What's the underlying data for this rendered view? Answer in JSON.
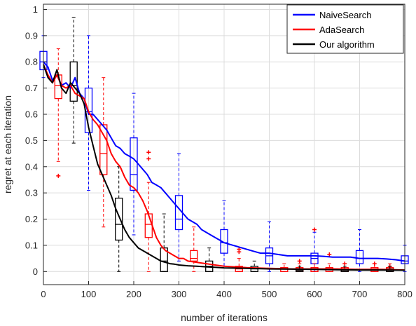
{
  "chart_data": {
    "type": "line",
    "xlabel": "number of iterations",
    "ylabel": "regret at each iteration",
    "xlim": [
      0,
      800
    ],
    "ylim": [
      -0.05,
      1.02
    ],
    "xticks": [
      "0",
      "100",
      "200",
      "300",
      "400",
      "500",
      "600",
      "700",
      "800"
    ],
    "yticks": [
      "0",
      "0.1",
      "0.2",
      "0.3",
      "0.4",
      "0.5",
      "0.6",
      "0.7",
      "0.8",
      "0.9",
      "1"
    ],
    "grid": true,
    "legend_position": "top-right",
    "series": [
      {
        "name": "NaiveSearch",
        "color": "#0000ff",
        "x": [
          0,
          10,
          20,
          30,
          40,
          50,
          60,
          70,
          80,
          90,
          100,
          110,
          120,
          130,
          140,
          150,
          160,
          170,
          180,
          190,
          200,
          210,
          220,
          230,
          240,
          250,
          260,
          270,
          280,
          290,
          300,
          310,
          320,
          330,
          340,
          350,
          360,
          370,
          380,
          390,
          400,
          420,
          440,
          460,
          480,
          500,
          520,
          540,
          560,
          580,
          600,
          620,
          640,
          660,
          680,
          700,
          720,
          740,
          760,
          780,
          800
        ],
        "y": [
          0.8,
          0.78,
          0.73,
          0.75,
          0.71,
          0.72,
          0.7,
          0.74,
          0.68,
          0.66,
          0.6,
          0.6,
          0.58,
          0.56,
          0.54,
          0.51,
          0.48,
          0.47,
          0.45,
          0.44,
          0.43,
          0.41,
          0.39,
          0.37,
          0.34,
          0.33,
          0.32,
          0.3,
          0.28,
          0.26,
          0.24,
          0.22,
          0.2,
          0.19,
          0.18,
          0.16,
          0.15,
          0.14,
          0.13,
          0.12,
          0.11,
          0.1,
          0.09,
          0.08,
          0.07,
          0.07,
          0.065,
          0.06,
          0.06,
          0.06,
          0.06,
          0.058,
          0.055,
          0.055,
          0.055,
          0.05,
          0.05,
          0.05,
          0.048,
          0.045,
          0.04
        ]
      },
      {
        "name": "AdaSearch",
        "color": "#ff0000",
        "x": [
          0,
          10,
          20,
          30,
          40,
          50,
          60,
          70,
          80,
          90,
          100,
          110,
          120,
          130,
          140,
          150,
          160,
          170,
          180,
          190,
          200,
          210,
          220,
          230,
          240,
          250,
          260,
          270,
          280,
          290,
          300,
          310,
          320,
          340,
          360,
          380,
          400,
          450,
          500,
          550,
          600,
          650,
          700,
          750,
          800
        ],
        "y": [
          0.79,
          0.75,
          0.72,
          0.75,
          0.71,
          0.7,
          0.71,
          0.68,
          0.67,
          0.66,
          0.61,
          0.58,
          0.56,
          0.53,
          0.5,
          0.45,
          0.42,
          0.4,
          0.36,
          0.33,
          0.32,
          0.3,
          0.27,
          0.23,
          0.18,
          0.13,
          0.1,
          0.08,
          0.07,
          0.06,
          0.05,
          0.05,
          0.04,
          0.035,
          0.03,
          0.025,
          0.02,
          0.015,
          0.012,
          0.01,
          0.01,
          0.01,
          0.008,
          0.008,
          0.006
        ]
      },
      {
        "name": "Our algorithm",
        "color": "#000000",
        "x": [
          0,
          10,
          20,
          30,
          40,
          50,
          60,
          70,
          80,
          90,
          100,
          110,
          120,
          130,
          140,
          150,
          160,
          170,
          180,
          190,
          200,
          210,
          220,
          230,
          240,
          250,
          260,
          270,
          280,
          290,
          300,
          320,
          340,
          360,
          380,
          400,
          450,
          500,
          550,
          600,
          650,
          700,
          750,
          800
        ],
        "y": [
          0.79,
          0.74,
          0.72,
          0.77,
          0.7,
          0.68,
          0.72,
          0.7,
          0.68,
          0.64,
          0.55,
          0.48,
          0.41,
          0.37,
          0.33,
          0.29,
          0.24,
          0.2,
          0.16,
          0.13,
          0.11,
          0.09,
          0.08,
          0.07,
          0.06,
          0.05,
          0.04,
          0.035,
          0.03,
          0.028,
          0.025,
          0.022,
          0.02,
          0.018,
          0.016,
          0.014,
          0.012,
          0.01,
          0.009,
          0.008,
          0.007,
          0.006,
          0.006,
          0.005
        ]
      }
    ],
    "boxplots": [
      {
        "series": "NaiveSearch",
        "x": 0,
        "q1": 0.77,
        "median": 0.8,
        "q3": 0.84,
        "whisker_low": 0.74,
        "whisker_high": 0.9,
        "outliers": []
      },
      {
        "series": "NaiveSearch",
        "x": 100,
        "q1": 0.53,
        "median": 0.61,
        "q3": 0.7,
        "whisker_low": 0.31,
        "whisker_high": 0.9,
        "outliers": []
      },
      {
        "series": "NaiveSearch",
        "x": 200,
        "q1": 0.31,
        "median": 0.37,
        "q3": 0.51,
        "whisker_low": 0.14,
        "whisker_high": 0.68,
        "outliers": []
      },
      {
        "series": "NaiveSearch",
        "x": 300,
        "q1": 0.16,
        "median": 0.2,
        "q3": 0.29,
        "whisker_low": 0.04,
        "whisker_high": 0.45,
        "outliers": []
      },
      {
        "series": "NaiveSearch",
        "x": 400,
        "q1": 0.07,
        "median": 0.11,
        "q3": 0.16,
        "whisker_low": 0.02,
        "whisker_high": 0.27,
        "outliers": []
      },
      {
        "series": "NaiveSearch",
        "x": 500,
        "q1": 0.03,
        "median": 0.06,
        "q3": 0.09,
        "whisker_low": 0.0,
        "whisker_high": 0.19,
        "outliers": []
      },
      {
        "series": "NaiveSearch",
        "x": 600,
        "q1": 0.03,
        "median": 0.05,
        "q3": 0.07,
        "whisker_low": 0.0,
        "whisker_high": 0.15,
        "outliers": []
      },
      {
        "series": "NaiveSearch",
        "x": 700,
        "q1": 0.03,
        "median": 0.05,
        "q3": 0.08,
        "whisker_low": 0.0,
        "whisker_high": 0.16,
        "outliers": []
      },
      {
        "series": "NaiveSearch",
        "x": 800,
        "q1": 0.03,
        "median": 0.04,
        "q3": 0.06,
        "whisker_low": 0.0,
        "whisker_high": 0.1,
        "outliers": []
      },
      {
        "series": "AdaSearch",
        "x": 33,
        "q1": 0.66,
        "median": 0.71,
        "q3": 0.75,
        "whisker_low": 0.42,
        "whisker_high": 0.85,
        "outliers": [
          0.365
        ]
      },
      {
        "series": "AdaSearch",
        "x": 133,
        "q1": 0.37,
        "median": 0.45,
        "q3": 0.56,
        "whisker_low": 0.17,
        "whisker_high": 0.74,
        "outliers": []
      },
      {
        "series": "AdaSearch",
        "x": 233,
        "q1": 0.13,
        "median": 0.18,
        "q3": 0.22,
        "whisker_low": 0.0,
        "whisker_high": 0.34,
        "outliers": [
          0.43,
          0.455
        ]
      },
      {
        "series": "AdaSearch",
        "x": 333,
        "q1": 0.04,
        "median": 0.05,
        "q3": 0.08,
        "whisker_low": 0.0,
        "whisker_high": 0.17,
        "outliers": []
      },
      {
        "series": "AdaSearch",
        "x": 433,
        "q1": 0.0,
        "median": 0.01,
        "q3": 0.02,
        "whisker_low": 0.0,
        "whisker_high": 0.05,
        "outliers": [
          0.085,
          0.075
        ]
      },
      {
        "series": "AdaSearch",
        "x": 533,
        "q1": 0.0,
        "median": 0.01,
        "q3": 0.015,
        "whisker_low": 0.0,
        "whisker_high": 0.03,
        "outliers": []
      },
      {
        "series": "AdaSearch",
        "x": 567,
        "q1": 0.0,
        "median": 0.01,
        "q3": 0.015,
        "whisker_low": 0.0,
        "whisker_high": 0.03,
        "outliers": [
          0.04
        ]
      },
      {
        "series": "AdaSearch",
        "x": 600,
        "q1": 0.0,
        "median": 0.01,
        "q3": 0.015,
        "whisker_low": 0.0,
        "whisker_high": 0.03,
        "outliers": [
          0.16
        ]
      },
      {
        "series": "AdaSearch",
        "x": 633,
        "q1": 0.0,
        "median": 0.01,
        "q3": 0.015,
        "whisker_low": 0.0,
        "whisker_high": 0.03,
        "outliers": [
          0.065
        ]
      },
      {
        "series": "AdaSearch",
        "x": 667,
        "q1": 0.0,
        "median": 0.01,
        "q3": 0.015,
        "whisker_low": 0.0,
        "whisker_high": 0.03,
        "outliers": [
          0.03
        ]
      },
      {
        "series": "AdaSearch",
        "x": 733,
        "q1": 0.0,
        "median": 0.01,
        "q3": 0.015,
        "whisker_low": 0.0,
        "whisker_high": 0.03,
        "outliers": [
          0.03
        ]
      },
      {
        "series": "AdaSearch",
        "x": 767,
        "q1": 0.0,
        "median": 0.01,
        "q3": 0.015,
        "whisker_low": 0.0,
        "whisker_high": 0.03,
        "outliers": [
          0.02
        ]
      },
      {
        "series": "Our algorithm",
        "x": 67,
        "q1": 0.65,
        "median": 0.71,
        "q3": 0.8,
        "whisker_low": 0.49,
        "whisker_high": 0.97,
        "outliers": []
      },
      {
        "series": "Our algorithm",
        "x": 167,
        "q1": 0.12,
        "median": 0.18,
        "q3": 0.28,
        "whisker_low": 0.0,
        "whisker_high": 0.4,
        "outliers": []
      },
      {
        "series": "Our algorithm",
        "x": 267,
        "q1": 0.0,
        "median": 0.04,
        "q3": 0.09,
        "whisker_low": 0.0,
        "whisker_high": 0.22,
        "outliers": []
      },
      {
        "series": "Our algorithm",
        "x": 367,
        "q1": 0.0,
        "median": 0.02,
        "q3": 0.04,
        "whisker_low": 0.0,
        "whisker_high": 0.09,
        "outliers": []
      },
      {
        "series": "Our algorithm",
        "x": 467,
        "q1": 0.0,
        "median": 0.01,
        "q3": 0.02,
        "whisker_low": 0.0,
        "whisker_high": 0.04,
        "outliers": []
      },
      {
        "series": "Our algorithm",
        "x": 567,
        "q1": 0.0,
        "median": 0.005,
        "q3": 0.01,
        "whisker_low": 0.0,
        "whisker_high": 0.02,
        "outliers": []
      },
      {
        "series": "Our algorithm",
        "x": 667,
        "q1": 0.0,
        "median": 0.005,
        "q3": 0.01,
        "whisker_low": 0.0,
        "whisker_high": 0.02,
        "outliers": []
      },
      {
        "series": "Our algorithm",
        "x": 767,
        "q1": 0.0,
        "median": 0.005,
        "q3": 0.01,
        "whisker_low": 0.0,
        "whisker_high": 0.02,
        "outliers": []
      }
    ]
  }
}
